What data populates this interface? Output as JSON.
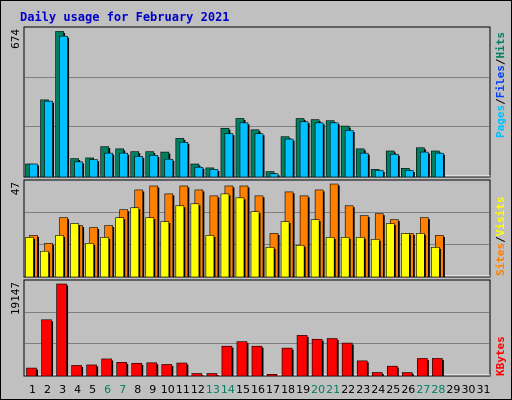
{
  "title": "Daily usage for February 2021",
  "colors": {
    "background": "#c0c0c0",
    "plot_bg": "#c0c0c0",
    "title": "#0000c8",
    "pages": "#008060",
    "files": "#00c0ff",
    "hits": "#008060",
    "sites": "#ffff00",
    "visits": "#ff8000",
    "kbytes": "#ff0000",
    "day_normal": "#000000",
    "day_weekend": "#008060"
  },
  "chart_data": [
    {
      "type": "bar",
      "title": "Daily usage for February 2021",
      "panel": "top",
      "ylabel_max": "674",
      "ylim": [
        0,
        674
      ],
      "grid": true,
      "legend": [
        "Pages",
        "Files",
        "Hits"
      ],
      "x": [
        1,
        2,
        3,
        4,
        5,
        6,
        7,
        8,
        9,
        10,
        11,
        12,
        13,
        14,
        15,
        16,
        17,
        18,
        19,
        20,
        21,
        22,
        23,
        24,
        25,
        26,
        27,
        28,
        29,
        30,
        31
      ],
      "series": [
        {
          "name": "Hits",
          "values": [
            60,
            356,
            672,
            85,
            88,
            140,
            130,
            117,
            117,
            115,
            178,
            60,
            42,
            225,
            270,
            218,
            25,
            186,
            270,
            265,
            260,
            235,
            130,
            35,
            120,
            40,
            135,
            120,
            null,
            null,
            null
          ]
        },
        {
          "name": "Files",
          "values": [
            60,
            350,
            650,
            70,
            80,
            110,
            110,
            95,
            100,
            82,
            160,
            45,
            35,
            200,
            250,
            200,
            15,
            175,
            255,
            250,
            250,
            215,
            110,
            30,
            105,
            30,
            115,
            110,
            null,
            null,
            null
          ]
        }
      ]
    },
    {
      "type": "bar",
      "panel": "middle",
      "ylabel_max": "47",
      "ylim": [
        0,
        47
      ],
      "grid": true,
      "legend": [
        "Sites",
        "Visits"
      ],
      "x": [
        1,
        2,
        3,
        4,
        5,
        6,
        7,
        8,
        9,
        10,
        11,
        12,
        13,
        14,
        15,
        16,
        17,
        18,
        19,
        20,
        21,
        22,
        23,
        24,
        25,
        26,
        27,
        28,
        29,
        30,
        31
      ],
      "series": [
        {
          "name": "Sites",
          "values": [
            20,
            13,
            21,
            27,
            17,
            20,
            30,
            35,
            30,
            28,
            36,
            37,
            21,
            42,
            40,
            33,
            15,
            28,
            16,
            29,
            20,
            20,
            20,
            19,
            27,
            22,
            22,
            15,
            null,
            null,
            null
          ]
        },
        {
          "name": "Visits",
          "values": [
            21,
            17,
            30,
            26,
            25,
            26,
            34,
            44,
            46,
            42,
            46,
            44,
            41,
            46,
            46,
            41,
            22,
            43,
            41,
            44,
            47,
            36,
            31,
            32,
            29,
            22,
            30,
            21,
            null,
            null,
            null
          ]
        }
      ]
    },
    {
      "type": "bar",
      "panel": "bottom",
      "ylabel_max": "19147",
      "ylim": [
        0,
        19147
      ],
      "grid": true,
      "legend": [
        "KBytes"
      ],
      "x": [
        1,
        2,
        3,
        4,
        5,
        6,
        7,
        8,
        9,
        10,
        11,
        12,
        13,
        14,
        15,
        16,
        17,
        18,
        19,
        20,
        21,
        22,
        23,
        24,
        25,
        26,
        27,
        28,
        29,
        30,
        31
      ],
      "series": [
        {
          "name": "KBytes",
          "values": [
            1650,
            11700,
            19147,
            2200,
            2300,
            3550,
            2850,
            2650,
            2750,
            2400,
            2700,
            520,
            520,
            6200,
            7150,
            6200,
            350,
            5800,
            8450,
            7650,
            7800,
            6850,
            3150,
            730,
            2050,
            720,
            3650,
            3650,
            null,
            null,
            null
          ]
        }
      ]
    }
  ],
  "days": [
    {
      "n": "1",
      "weekend": false
    },
    {
      "n": "2",
      "weekend": false
    },
    {
      "n": "3",
      "weekend": false
    },
    {
      "n": "4",
      "weekend": false
    },
    {
      "n": "5",
      "weekend": false
    },
    {
      "n": "6",
      "weekend": true
    },
    {
      "n": "7",
      "weekend": true
    },
    {
      "n": "8",
      "weekend": false
    },
    {
      "n": "9",
      "weekend": false
    },
    {
      "n": "10",
      "weekend": false
    },
    {
      "n": "11",
      "weekend": false
    },
    {
      "n": "12",
      "weekend": false
    },
    {
      "n": "13",
      "weekend": true
    },
    {
      "n": "14",
      "weekend": true
    },
    {
      "n": "15",
      "weekend": false
    },
    {
      "n": "16",
      "weekend": false
    },
    {
      "n": "17",
      "weekend": false
    },
    {
      "n": "18",
      "weekend": false
    },
    {
      "n": "19",
      "weekend": false
    },
    {
      "n": "20",
      "weekend": true
    },
    {
      "n": "21",
      "weekend": true
    },
    {
      "n": "22",
      "weekend": false
    },
    {
      "n": "23",
      "weekend": false
    },
    {
      "n": "24",
      "weekend": false
    },
    {
      "n": "25",
      "weekend": false
    },
    {
      "n": "26",
      "weekend": false
    },
    {
      "n": "27",
      "weekend": true
    },
    {
      "n": "28",
      "weekend": true
    },
    {
      "n": "29",
      "weekend": false
    },
    {
      "n": "30",
      "weekend": false
    },
    {
      "n": "31",
      "weekend": false
    }
  ],
  "legend_labels": {
    "top": [
      {
        "text": "Pages",
        "color": "#00c0ff"
      },
      {
        "text": "/",
        "color": "#000000"
      },
      {
        "text": "Files",
        "color": "#0040ff"
      },
      {
        "text": "/",
        "color": "#000000"
      },
      {
        "text": "Hits",
        "color": "#008060"
      }
    ],
    "middle": [
      {
        "text": "Sites",
        "color": "#ff8000"
      },
      {
        "text": "/",
        "color": "#000000"
      },
      {
        "text": "Visits",
        "color": "#ffff00"
      }
    ],
    "bottom": [
      {
        "text": "KBytes",
        "color": "#ff0000"
      }
    ]
  }
}
